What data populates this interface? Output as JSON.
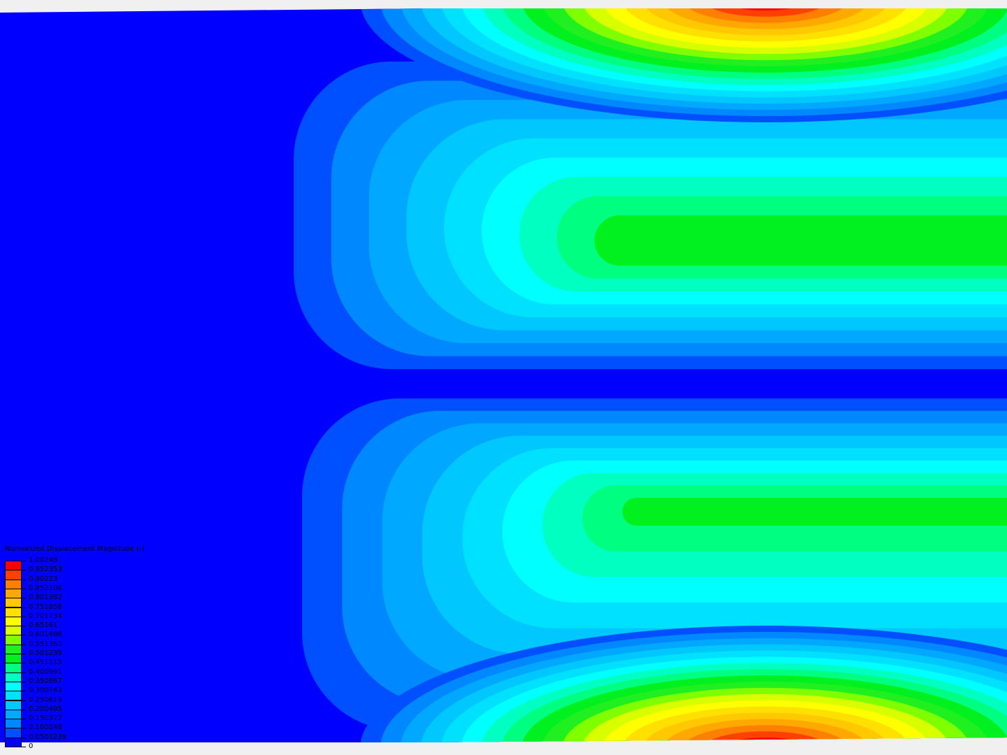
{
  "legend": {
    "title": "Normalized Displacement Magnitude (-)",
    "labels": [
      "1.00248",
      "0.952353",
      "0.90223",
      "0.852106",
      "0.801982",
      "0.751858",
      "0.701734",
      "0.65161",
      "0.601486",
      "0.551363",
      "0.501239",
      "0.451115",
      "0.400991",
      "0.350867",
      "0.300743",
      "0.250619",
      "0.200495",
      "0.150372",
      "0.100248",
      "0.0501239",
      "0"
    ],
    "colors": [
      "#ff0000",
      "#ff4000",
      "#ff8000",
      "#ffa800",
      "#ffc800",
      "#ffe000",
      "#ffff00",
      "#d8ff00",
      "#80ff00",
      "#20f020",
      "#00f020",
      "#00ff80",
      "#00ffc0",
      "#00ffff",
      "#00e0ff",
      "#00c8ff",
      "#00a8ff",
      "#0088ff",
      "#0050ff",
      "#0000ff"
    ]
  },
  "background_color": "#f0f0f0",
  "field_min_color": "#0000ff"
}
